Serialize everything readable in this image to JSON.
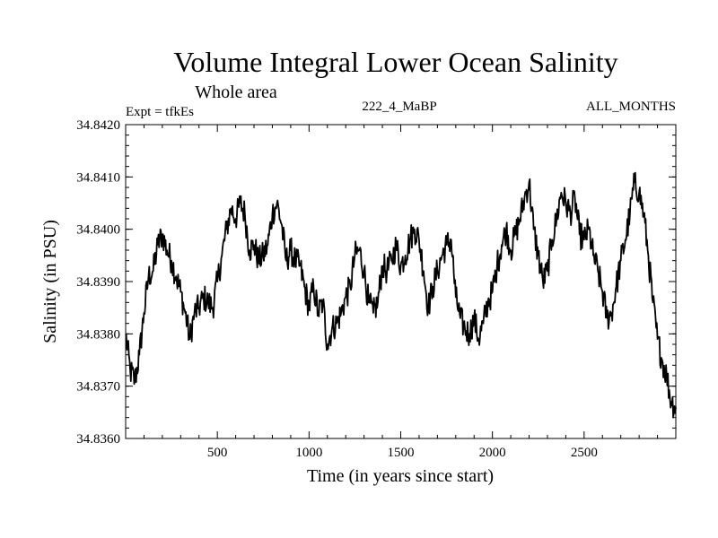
{
  "chart_data": {
    "type": "line",
    "title": "Volume Integral Lower Ocean Salinity",
    "subtitle": "Whole area",
    "left_info": "Expt = tfkEs",
    "center_info": "222_4_MaBP",
    "right_info": "ALL_MONTHS",
    "xlabel": "Time (in years since start)",
    "ylabel": "Salinity (in PSU)",
    "xlim": [
      0,
      3000
    ],
    "ylim": [
      34.836,
      34.842
    ],
    "xticks": [
      500,
      1000,
      1500,
      2000,
      2500
    ],
    "xtick_labels": [
      "500",
      "1000",
      "1500",
      "2000",
      "2500"
    ],
    "yticks": [
      34.836,
      34.837,
      34.838,
      34.839,
      34.84,
      34.841,
      34.842
    ],
    "ytick_labels": [
      "34.8360",
      "34.8370",
      "34.8380",
      "34.8390",
      "34.8400",
      "34.8410",
      "34.8420"
    ],
    "grid": false,
    "series": [
      {
        "color": "#000000",
        "x": [
          0,
          25,
          50,
          75,
          100,
          125,
          150,
          175,
          200,
          225,
          250,
          275,
          300,
          325,
          350,
          375,
          400,
          425,
          450,
          475,
          500,
          525,
          550,
          575,
          600,
          625,
          650,
          675,
          700,
          725,
          750,
          775,
          800,
          825,
          850,
          875,
          900,
          925,
          950,
          975,
          1000,
          1025,
          1050,
          1075,
          1100,
          1125,
          1150,
          1175,
          1200,
          1225,
          1250,
          1275,
          1300,
          1325,
          1350,
          1375,
          1400,
          1425,
          1450,
          1475,
          1500,
          1525,
          1550,
          1575,
          1600,
          1625,
          1650,
          1675,
          1700,
          1725,
          1750,
          1775,
          1800,
          1825,
          1850,
          1875,
          1900,
          1925,
          1950,
          1975,
          2000,
          2025,
          2050,
          2075,
          2100,
          2125,
          2150,
          2175,
          2200,
          2225,
          2250,
          2275,
          2300,
          2325,
          2350,
          2375,
          2400,
          2425,
          2450,
          2475,
          2500,
          2525,
          2550,
          2575,
          2600,
          2625,
          2650,
          2675,
          2700,
          2725,
          2750,
          2775,
          2800,
          2825,
          2850,
          2875,
          2900,
          2925,
          2950,
          2975,
          3000
        ],
        "y": [
          34.838,
          34.8373,
          34.8371,
          34.8376,
          34.8384,
          34.8391,
          34.8392,
          34.8397,
          34.8399,
          34.8396,
          34.8394,
          34.8391,
          34.8388,
          34.8384,
          34.8379,
          34.8384,
          34.8385,
          34.8387,
          34.8386,
          34.8385,
          34.839,
          34.8395,
          34.84,
          34.8404,
          34.8402,
          34.8405,
          34.8403,
          34.8396,
          34.8397,
          34.8394,
          34.8395,
          34.8397,
          34.8403,
          34.8405,
          34.8401,
          34.8394,
          34.8396,
          34.8394,
          34.8393,
          34.8389,
          34.8385,
          34.8389,
          34.8384,
          34.8386,
          34.8378,
          34.8381,
          34.8382,
          34.8384,
          34.8387,
          34.8389,
          34.8395,
          34.8396,
          34.8392,
          34.8386,
          34.8384,
          34.8386,
          34.8393,
          34.8392,
          34.8394,
          34.8397,
          34.8393,
          34.8395,
          34.8398,
          34.84,
          34.8398,
          34.8392,
          34.8385,
          34.8389,
          34.8392,
          34.8395,
          34.8397,
          34.8398,
          34.8387,
          34.8383,
          34.8381,
          34.838,
          34.8383,
          34.8379,
          34.8382,
          34.8386,
          34.8388,
          34.8393,
          34.8397,
          34.84,
          34.8396,
          34.8399,
          34.8402,
          34.8406,
          34.8409,
          34.84,
          34.8395,
          34.839,
          34.8392,
          34.8398,
          34.8402,
          34.8407,
          34.8405,
          34.8403,
          34.8406,
          34.8399,
          34.8398,
          34.84,
          34.8395,
          34.8392,
          34.8388,
          34.8383,
          34.8384,
          34.8389,
          34.8394,
          34.8398,
          34.8403,
          34.8409,
          34.8407,
          34.8403,
          34.8395,
          34.8386,
          34.8379,
          34.8375,
          34.8372,
          34.8367,
          34.8366
        ]
      }
    ]
  }
}
